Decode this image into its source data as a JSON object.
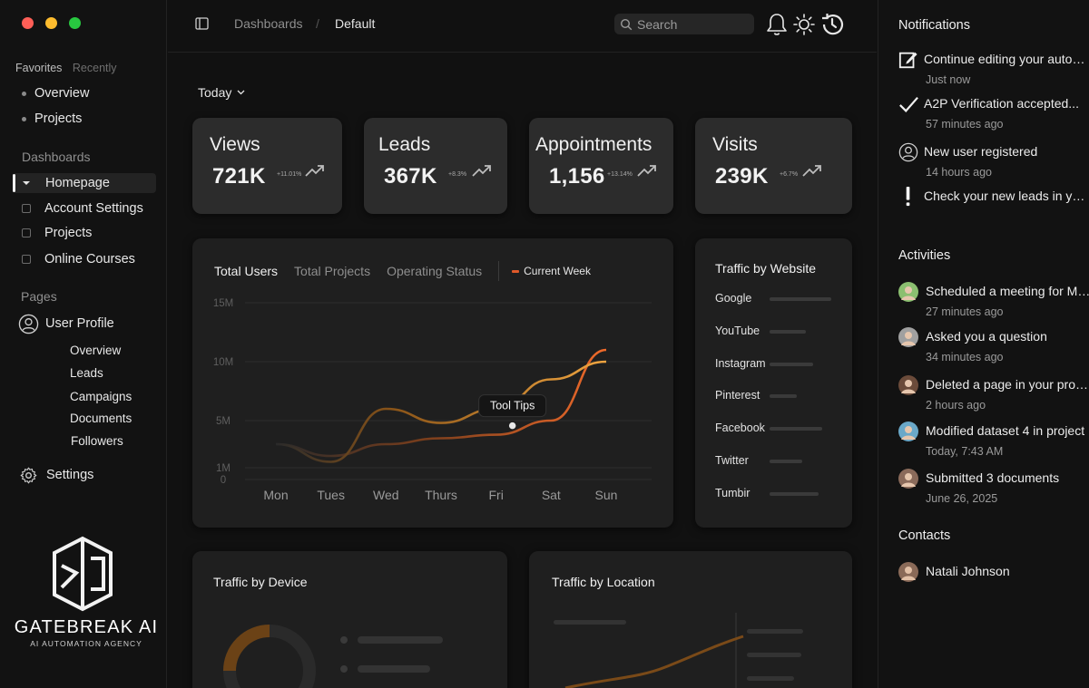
{
  "sidebar": {
    "favorites_label": "Favorites",
    "recently_label": "Recently",
    "favorites": [
      "Overview",
      "Projects"
    ],
    "dashboards_label": "Dashboards",
    "dashboards": [
      "Homepage",
      "Account Settings",
      "Projects",
      "Online Courses"
    ],
    "pages_label": "Pages",
    "user_profile": "User Profile",
    "user_profile_items": [
      "Overview",
      "Leads",
      "Campaigns",
      "Documents",
      "Followers"
    ],
    "settings": "Settings",
    "logo_name": "GATEBREAK AI",
    "logo_tag": "AI AUTOMATION AGENCY"
  },
  "topbar": {
    "breadcrumb": [
      "Dashboards",
      "Default"
    ],
    "search_placeholder": "Search"
  },
  "main": {
    "date_filter": "Today",
    "stats": [
      {
        "title": "Views",
        "value": "721K",
        "delta": "+11.01%"
      },
      {
        "title": "Leads",
        "value": "367K",
        "delta": "+8.3%"
      },
      {
        "title": "Appointments",
        "value": "1,156",
        "delta": "+13.14%"
      },
      {
        "title": "Visits",
        "value": "239K",
        "delta": "+6.7%"
      }
    ],
    "chart_tabs": [
      "Total Users",
      "Total Projects",
      "Operating Status"
    ],
    "legend_label": "Current Week",
    "tooltip": "Tool Tips",
    "traffic_website_title": "Traffic by Website",
    "traffic_device_title": "Traffic by Device",
    "traffic_location_title": "Traffic by Location"
  },
  "chart_data": [
    {
      "type": "line",
      "x": [
        "Mon",
        "Tues",
        "Wed",
        "Thurs",
        "Fri",
        "Sat",
        "Sun"
      ],
      "y_ticks": [
        "15M",
        "10M",
        "5M",
        "1M",
        "0"
      ],
      "ylim": [
        0,
        15
      ],
      "series": [
        {
          "name": "Current Week",
          "values": [
            3,
            1.5,
            6,
            4.8,
            6,
            8.5,
            10
          ]
        },
        {
          "values": [
            3,
            2,
            3,
            3.5,
            3.8,
            5,
            11
          ]
        }
      ],
      "tooltip_label": "Tool Tips"
    },
    {
      "type": "bar",
      "title": "Traffic by Website",
      "categories": [
        "Google",
        "YouTube",
        "Instagram",
        "Pinterest",
        "Facebook",
        "Twitter",
        "Tumbir"
      ],
      "values": [
        68,
        40,
        48,
        30,
        58,
        36,
        54
      ]
    }
  ],
  "notifications": {
    "title": "Notifications",
    "items": [
      {
        "icon": "edit-icon",
        "text": "Continue editing your automation",
        "time": "Just now"
      },
      {
        "icon": "check-icon",
        "text": "A2P Verification accepted...",
        "time": "57 minutes ago"
      },
      {
        "icon": "user-icon",
        "text": "New user registered",
        "time": "14 hours ago"
      },
      {
        "icon": "exclamation-icon",
        "text": "Check your new leads in your pipeline",
        "time": ""
      }
    ]
  },
  "activities": {
    "title": "Activities",
    "items": [
      {
        "text": "Scheduled a meeting for Monday",
        "time": "27 minutes ago",
        "color": "#8bbf70"
      },
      {
        "text": "Asked you a question",
        "time": "34 minutes ago",
        "color": "#a0a0a0"
      },
      {
        "text": "Deleted a page in your project",
        "time": "2 hours ago",
        "color": "#6b4b3a"
      },
      {
        "text": "Modified dataset 4 in project",
        "time": "Today, 7:43 AM",
        "color": "#6aa8c8"
      },
      {
        "text": "Submitted 3 documents",
        "time": "June 26, 2025",
        "color": "#8a6a5a"
      }
    ]
  },
  "contacts": {
    "title": "Contacts",
    "items": [
      {
        "name": "Natali Johnson",
        "color": "#8a6a58"
      }
    ]
  },
  "colors": {
    "accent_orange": "#e0592a",
    "accent_amber": "#d9892e",
    "card_bg": "#2c2c2c",
    "panel_bg": "#1f1f1f"
  }
}
